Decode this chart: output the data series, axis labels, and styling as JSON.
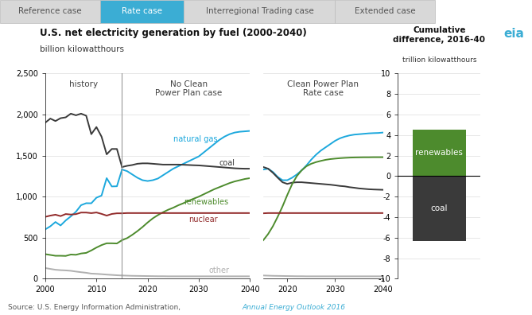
{
  "title": "U.S. net electricity generation by fuel (2000-2040)",
  "ylabel": "billion kilowatthours",
  "tab_labels": [
    "Reference case",
    "Rate case",
    "Interregional Trading case",
    "Extended case"
  ],
  "active_tab": 1,
  "tab_color": "#3badd4",
  "tab_bg": "#d8d8d8",
  "tab_border": "#c0c0c0",
  "history_label": "history",
  "no_cpp_label": "No Clean\nPower Plan case",
  "cpp_rate_label": "Clean Power Plan\nRate case",
  "cum_diff_title": "Cumulative\ndifference, 2016-40",
  "cum_diff_ylabel": "trillion kilowatthours",
  "source_text": "Source: U.S. Energy Information Administration, ",
  "source_link": "Annual Energy Outlook 2016",
  "ylim": [
    0,
    2500
  ],
  "yticks": [
    0,
    500,
    1000,
    1500,
    2000,
    2500
  ],
  "bar_ylim": [
    -10,
    10
  ],
  "bar_yticks": [
    -10,
    -8,
    -6,
    -4,
    -2,
    0,
    2,
    4,
    6,
    8,
    10
  ],
  "history_years": [
    2000,
    2001,
    2002,
    2003,
    2004,
    2005,
    2006,
    2007,
    2008,
    2009,
    2010,
    2011,
    2012,
    2013,
    2014,
    2015
  ],
  "forecast_years": [
    2015,
    2016,
    2017,
    2018,
    2019,
    2020,
    2021,
    2022,
    2023,
    2024,
    2025,
    2026,
    2027,
    2028,
    2029,
    2030,
    2031,
    2032,
    2033,
    2034,
    2035,
    2036,
    2037,
    2038,
    2039,
    2040
  ],
  "colors": {
    "natural_gas": "#1ca8dd",
    "coal": "#3a3a3a",
    "renewables": "#4d8b2d",
    "nuclear": "#922b2b",
    "other": "#b0b0b0"
  },
  "history_coal": [
    1900,
    1950,
    1920,
    1955,
    1965,
    2010,
    1990,
    2010,
    1985,
    1760,
    1847,
    1730,
    1515,
    1580,
    1580,
    1360
  ],
  "history_gas": [
    601,
    639,
    691,
    649,
    710,
    760,
    816,
    896,
    920,
    919,
    987,
    1013,
    1225,
    1124,
    1126,
    1330
  ],
  "history_renewables": [
    300,
    290,
    280,
    280,
    278,
    295,
    292,
    308,
    315,
    345,
    380,
    410,
    432,
    432,
    430,
    470
  ],
  "history_nuclear": [
    754,
    769,
    780,
    763,
    788,
    782,
    787,
    806,
    806,
    799,
    807,
    790,
    769,
    789,
    797,
    797
  ],
  "history_other": [
    131,
    120,
    110,
    105,
    102,
    97,
    88,
    80,
    73,
    63,
    60,
    56,
    51,
    47,
    43,
    40
  ],
  "nocpp_gas": [
    1330,
    1310,
    1270,
    1230,
    1200,
    1190,
    1200,
    1220,
    1260,
    1300,
    1340,
    1370,
    1400,
    1430,
    1460,
    1490,
    1540,
    1590,
    1640,
    1690,
    1730,
    1760,
    1780,
    1790,
    1795,
    1800
  ],
  "nocpp_coal": [
    1360,
    1375,
    1385,
    1400,
    1405,
    1405,
    1400,
    1395,
    1390,
    1390,
    1390,
    1390,
    1388,
    1385,
    1382,
    1380,
    1375,
    1370,
    1365,
    1360,
    1355,
    1350,
    1345,
    1342,
    1340,
    1340
  ],
  "nocpp_renewables": [
    470,
    495,
    535,
    580,
    630,
    685,
    735,
    775,
    810,
    840,
    865,
    895,
    920,
    950,
    975,
    1000,
    1030,
    1060,
    1090,
    1115,
    1140,
    1165,
    1185,
    1200,
    1215,
    1225
  ],
  "nocpp_nuclear": [
    797,
    800,
    800,
    800,
    800,
    800,
    800,
    800,
    800,
    800,
    800,
    800,
    800,
    800,
    800,
    800,
    800,
    800,
    800,
    800,
    800,
    800,
    800,
    800,
    800,
    800
  ],
  "nocpp_other": [
    40,
    38,
    36,
    35,
    34,
    33,
    32,
    31,
    31,
    30,
    30,
    30,
    30,
    30,
    30,
    30,
    30,
    30,
    30,
    30,
    30,
    30,
    30,
    30,
    30,
    30
  ],
  "cpp_gas": [
    1330,
    1340,
    1300,
    1240,
    1200,
    1200,
    1230,
    1270,
    1320,
    1380,
    1450,
    1510,
    1560,
    1600,
    1640,
    1680,
    1710,
    1730,
    1745,
    1755,
    1760,
    1765,
    1770,
    1773,
    1775,
    1780
  ],
  "cpp_coal": [
    1360,
    1340,
    1290,
    1230,
    1175,
    1155,
    1170,
    1175,
    1175,
    1170,
    1165,
    1160,
    1155,
    1150,
    1145,
    1138,
    1130,
    1125,
    1115,
    1108,
    1100,
    1095,
    1090,
    1087,
    1085,
    1083
  ],
  "cpp_renewables": [
    470,
    545,
    640,
    755,
    880,
    1020,
    1150,
    1250,
    1320,
    1370,
    1400,
    1420,
    1435,
    1448,
    1457,
    1463,
    1468,
    1472,
    1475,
    1477,
    1478,
    1479,
    1479,
    1480,
    1480,
    1480
  ],
  "cpp_nuclear": [
    797,
    800,
    800,
    800,
    800,
    800,
    800,
    800,
    800,
    800,
    800,
    800,
    800,
    800,
    800,
    800,
    800,
    800,
    800,
    800,
    800,
    800,
    800,
    800,
    800,
    800
  ],
  "cpp_other": [
    40,
    38,
    36,
    35,
    34,
    33,
    32,
    31,
    31,
    30,
    30,
    30,
    30,
    30,
    30,
    30,
    30,
    30,
    30,
    30,
    30,
    30,
    30,
    30,
    30,
    30
  ],
  "bar_values": [
    4.5,
    -6.3
  ],
  "bar_colors": [
    "#4d8b2d",
    "#3a3a3a"
  ],
  "bar_labels": [
    "renewables",
    "coal"
  ]
}
